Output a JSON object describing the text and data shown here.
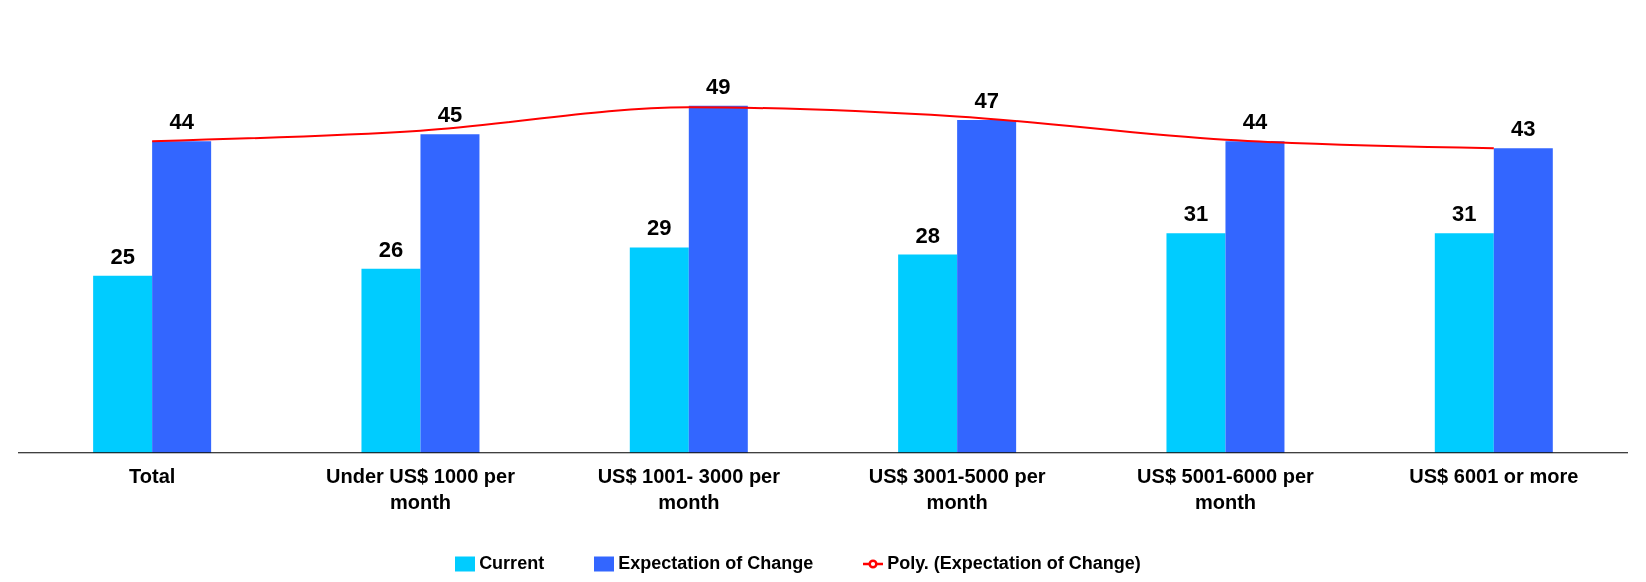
{
  "chart_data": {
    "type": "bar",
    "categories": [
      "Total",
      "Under US$ 1000 per month",
      "US$ 1001- 3000 per month",
      "US$ 3001-5000 per month",
      "US$ 5001-6000 per month",
      "US$ 6001 or more"
    ],
    "series": [
      {
        "name": "Current",
        "color": "#00ccff",
        "values": [
          25,
          26,
          29,
          28,
          31,
          31
        ],
        "value_labels": [
          "25",
          "26",
          "29",
          "28",
          "31",
          "31"
        ]
      },
      {
        "name": "Expectation of Change",
        "color": "#3366ff",
        "values": [
          44,
          45,
          49,
          47,
          44,
          43
        ],
        "value_labels": [
          "44",
          "45",
          "49",
          "47",
          "44",
          "43"
        ]
      },
      {
        "name": "Poly. (Expectation of Change)",
        "type": "line",
        "color": "#ff0000",
        "values": [
          44,
          45.5,
          48.8,
          47.5,
          44.2,
          43
        ]
      }
    ],
    "legend": "bottom",
    "marker": "none",
    "line_style": "solid"
  }
}
